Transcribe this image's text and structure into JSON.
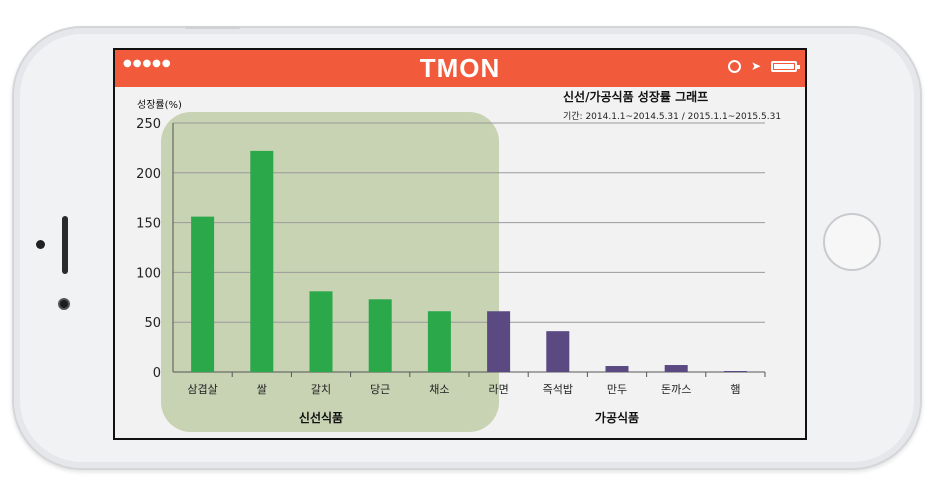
{
  "app": {
    "brand": "TMON",
    "signal": "●●●●●"
  },
  "chart_data": {
    "type": "bar",
    "title": "신선/가공식품 성장률 그래프",
    "period": "기간: 2014.1.1~2014.5.31  / 2015.1.1~2015.5.31",
    "ylabel": "성장률(%)",
    "xlabel": "",
    "ylim": [
      0,
      250
    ],
    "yticks": [
      0,
      50,
      100,
      150,
      200,
      250
    ],
    "grid": true,
    "categories": [
      "삼겹살",
      "쌀",
      "갈치",
      "당근",
      "채소",
      "라면",
      "즉석밥",
      "만두",
      "돈까스",
      "햄"
    ],
    "values": [
      156,
      222,
      81,
      73,
      61,
      61,
      41,
      6,
      7,
      1
    ],
    "groups": [
      {
        "name": "신선식품",
        "start": 0,
        "end": 4,
        "color": "#2aa84a"
      },
      {
        "name": "가공식품",
        "start": 5,
        "end": 9,
        "color": "#5b4a82"
      }
    ],
    "highlight_color": "#c8d3b4"
  }
}
